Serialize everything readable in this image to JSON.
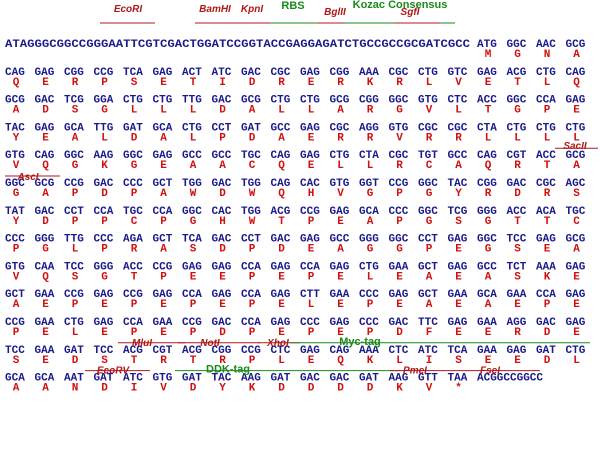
{
  "rows": [
    {
      "labels": [
        "EcoRI",
        "BamHI",
        "KpnI",
        "RBS",
        "BglII",
        "Kozac Consensus",
        "SgfI"
      ],
      "sequence": "ATAGGGCGGCCGGGAATTCGTCGACTGGATCCGGTACCGAGGAGATCTGCCGCCGCGATCGCC",
      "codons": [
        "ATG",
        "GGC",
        "AAC",
        "GCG"
      ],
      "aa": [
        "M",
        "G",
        "N",
        "A"
      ]
    },
    {
      "labels": [],
      "codons": [
        "CAG",
        "GAG",
        "CGG",
        "CCG",
        "TCA",
        "GAG",
        "ACT",
        "ATC",
        "GAC",
        "CGC",
        "GAG",
        "CGG",
        "AAA",
        "CGC",
        "CTG",
        "GTC",
        "GAG",
        "ACG",
        "CTG",
        "CAG"
      ],
      "aa": [
        "Q",
        "E",
        "R",
        "P",
        "S",
        "E",
        "T",
        "I",
        "D",
        "R",
        "E",
        "R",
        "K",
        "R",
        "L",
        "V",
        "E",
        "T",
        "L",
        "Q"
      ]
    },
    {
      "labels": [],
      "codons": [
        "GCG",
        "GAC",
        "TCG",
        "GGA",
        "CTG",
        "CTG",
        "TTG",
        "GAC",
        "GCG",
        "CTG",
        "CTG",
        "GCG",
        "CGG",
        "GGC",
        "GTG",
        "CTC",
        "ACC",
        "GGC",
        "CCA",
        "GAG"
      ],
      "aa": [
        "A",
        "D",
        "S",
        "G",
        "L",
        "L",
        "L",
        "D",
        "A",
        "L",
        "L",
        "A",
        "R",
        "G",
        "V",
        "L",
        "T",
        "G",
        "P",
        "E"
      ]
    },
    {
      "labels": [],
      "codons": [
        "TAC",
        "GAG",
        "GCA",
        "TTG",
        "GAT",
        "GCA",
        "CTG",
        "CCT",
        "GAT",
        "GCC",
        "GAG",
        "CGC",
        "AGG",
        "GTG",
        "CGC",
        "CGC",
        "CTA",
        "CTG",
        "CTG",
        "CTG"
      ],
      "aa": [
        "Y",
        "E",
        "A",
        "L",
        "D",
        "A",
        "L",
        "P",
        "D",
        "A",
        "E",
        "R",
        "R",
        "V",
        "R",
        "R",
        "L",
        "L",
        "L",
        "L"
      ]
    },
    {
      "labels": [
        "SacII"
      ],
      "codons": [
        "GTG",
        "CAG",
        "GGC",
        "AAG",
        "GGC",
        "GAG",
        "GCC",
        "GCC",
        "TGC",
        "CAG",
        "GAG",
        "CTG",
        "CTA",
        "CGC",
        "TGT",
        "GCC",
        "CAG",
        "CGT",
        "ACC",
        "GCG"
      ],
      "aa": [
        "V",
        "Q",
        "G",
        "K",
        "G",
        "E",
        "A",
        "A",
        "C",
        "Q",
        "E",
        "L",
        "L",
        "R",
        "C",
        "A",
        "Q",
        "R",
        "T",
        "A"
      ]
    },
    {
      "labels": [
        "AscI"
      ],
      "codons": [
        "GGC",
        "GCG",
        "CCG",
        "GAC",
        "CCC",
        "GCT",
        "TGG",
        "GAC",
        "TGG",
        "CAG",
        "CAC",
        "GTG",
        "GGT",
        "CCG",
        "GGC",
        "TAC",
        "CGG",
        "GAC",
        "CGC",
        "AGC"
      ],
      "aa": [
        "G",
        "A",
        "P",
        "D",
        "P",
        "A",
        "W",
        "D",
        "W",
        "Q",
        "H",
        "V",
        "G",
        "P",
        "G",
        "Y",
        "R",
        "D",
        "R",
        "S"
      ]
    },
    {
      "labels": [],
      "codons": [
        "TAT",
        "GAC",
        "CCT",
        "CCA",
        "TGC",
        "CCA",
        "GGC",
        "CAC",
        "TGG",
        "ACG",
        "CCG",
        "GAG",
        "GCA",
        "CCC",
        "GGC",
        "TCG",
        "GGG",
        "ACC",
        "ACA",
        "TGC"
      ],
      "aa": [
        "Y",
        "D",
        "P",
        "P",
        "C",
        "P",
        "G",
        "H",
        "W",
        "T",
        "P",
        "E",
        "A",
        "P",
        "G",
        "S",
        "G",
        "T",
        "T",
        "C"
      ]
    },
    {
      "labels": [],
      "codons": [
        "CCC",
        "GGG",
        "TTG",
        "CCC",
        "AGA",
        "GCT",
        "TCA",
        "GAC",
        "CCT",
        "GAC",
        "GAG",
        "GCC",
        "GGG",
        "GGC",
        "CCT",
        "GAG",
        "GGC",
        "TCC",
        "GAG",
        "GCG"
      ],
      "aa": [
        "P",
        "G",
        "L",
        "P",
        "R",
        "A",
        "S",
        "D",
        "P",
        "D",
        "E",
        "A",
        "G",
        "G",
        "P",
        "E",
        "G",
        "S",
        "E",
        "A"
      ]
    },
    {
      "labels": [],
      "codons": [
        "GTG",
        "CAA",
        "TCC",
        "GGG",
        "ACC",
        "CCG",
        "GAG",
        "GAG",
        "CCA",
        "GAG",
        "CCA",
        "GAG",
        "CTG",
        "GAA",
        "GCT",
        "GAG",
        "GCC",
        "TCT",
        "AAA",
        "GAG"
      ],
      "aa": [
        "V",
        "Q",
        "S",
        "G",
        "T",
        "P",
        "E",
        "E",
        "P",
        "E",
        "P",
        "E",
        "L",
        "E",
        "A",
        "E",
        "A",
        "S",
        "K",
        "E"
      ]
    },
    {
      "labels": [],
      "codons": [
        "GCT",
        "GAA",
        "CCG",
        "GAG",
        "CCG",
        "GAG",
        "CCA",
        "GAG",
        "CCA",
        "GAG",
        "CTT",
        "GAA",
        "CCC",
        "GAG",
        "GCT",
        "GAA",
        "GCA",
        "GAA",
        "CCA",
        "GAG"
      ],
      "aa": [
        "A",
        "E",
        "P",
        "E",
        "P",
        "E",
        "P",
        "E",
        "P",
        "E",
        "L",
        "E",
        "P",
        "E",
        "A",
        "E",
        "A",
        "E",
        "P",
        "E"
      ]
    },
    {
      "labels": [],
      "codons": [
        "CCG",
        "GAA",
        "CTG",
        "GAG",
        "CCA",
        "GAA",
        "CCG",
        "GAC",
        "CCA",
        "GAG",
        "CCC",
        "GAG",
        "CCC",
        "GAC",
        "TTC",
        "GAG",
        "GAA",
        "AGG",
        "GAC",
        "GAG"
      ],
      "aa": [
        "P",
        "E",
        "L",
        "E",
        "P",
        "E",
        "P",
        "D",
        "P",
        "E",
        "P",
        "E",
        "P",
        "D",
        "F",
        "E",
        "E",
        "R",
        "D",
        "E"
      ]
    },
    {
      "labels": [
        "MluI",
        "NotI",
        "XhoI",
        "Myc-tag"
      ],
      "codons": [
        "TCC",
        "GAA",
        "GAT",
        "TCC",
        "ACG",
        "CGT",
        "ACG",
        "CGG",
        "CCG",
        "CTC",
        "GAG",
        "CAG",
        "AAA",
        "CTC",
        "ATC",
        "TCA",
        "GAA",
        "GAG",
        "GAT",
        "CTG"
      ],
      "aa": [
        "S",
        "E",
        "D",
        "S",
        "T",
        "R",
        "T",
        "R",
        "P",
        "L",
        "E",
        "Q",
        "K",
        "L",
        "I",
        "S",
        "E",
        "E",
        "D",
        "L"
      ]
    },
    {
      "labels": [
        "EcoRV",
        "DDK-tag",
        "PmeI",
        "FseI"
      ],
      "codons": [
        "GCA",
        "GCA",
        "AAT",
        "GAT",
        "ATC",
        "GTG",
        "GAT",
        "TAC",
        "AAG",
        "GAT",
        "GAC",
        "GAC",
        "GAT",
        "AAG",
        "GTT",
        "TAA"
      ],
      "tail": "ACGGCCGGCC",
      "aa": [
        "A",
        "A",
        "N",
        "D",
        "I",
        "V",
        "D",
        "Y",
        "K",
        "D",
        "D",
        "D",
        "D",
        "K",
        "V",
        "*"
      ]
    }
  ]
}
